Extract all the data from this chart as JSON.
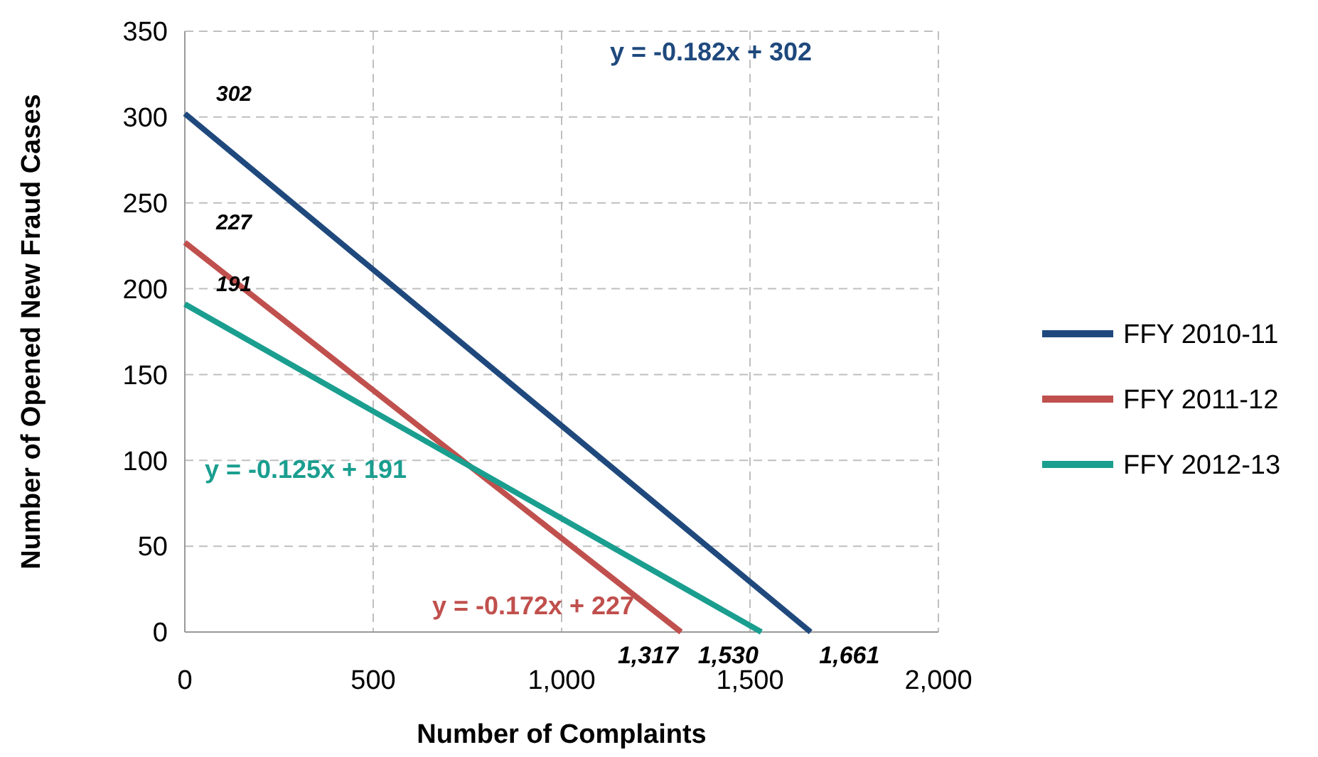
{
  "chart_data": {
    "type": "line",
    "xlabel": "Number of Complaints",
    "ylabel": "Number of Opened New Fraud Cases",
    "xlim": [
      0,
      2000
    ],
    "xticks": [
      0,
      500,
      {
        "value": 1000,
        "label": "1,000"
      },
      {
        "value": 1500,
        "label": "1,500"
      },
      {
        "value": 2000,
        "label": "2,000"
      }
    ],
    "ylim": [
      0,
      350
    ],
    "yticks": [
      0,
      50,
      100,
      150,
      200,
      250,
      300,
      350
    ],
    "grid": true,
    "legend": "right",
    "marker": "none",
    "line_style": "solid",
    "series": [
      {
        "name": "FFY 2010-11",
        "color": "#1f497d",
        "x": [
          0,
          1661
        ],
        "values": [
          302,
          0
        ],
        "value_labels": [
          "302",
          null
        ]
      },
      {
        "name": "FFY 2011-12",
        "color": "#c0504d",
        "x": [
          0,
          1317
        ],
        "values": [
          227,
          0
        ],
        "value_labels": [
          "227",
          null
        ]
      },
      {
        "name": "FFY 2012-13",
        "color": "#1a9e8f",
        "x": [
          0,
          1530
        ],
        "values": [
          191,
          0
        ],
        "value_labels": [
          "191",
          null
        ]
      }
    ],
    "annotations": [
      "y = -0.182x + 302",
      "y = -0.172x + 227",
      "y = -0.125x + 191",
      {
        "text": "1,317",
        "x": 1317,
        "y": 0
      },
      {
        "text": "1,530",
        "x": 1530,
        "y": 0
      },
      {
        "text": "1,661",
        "x": 1661,
        "y": 0
      }
    ]
  }
}
